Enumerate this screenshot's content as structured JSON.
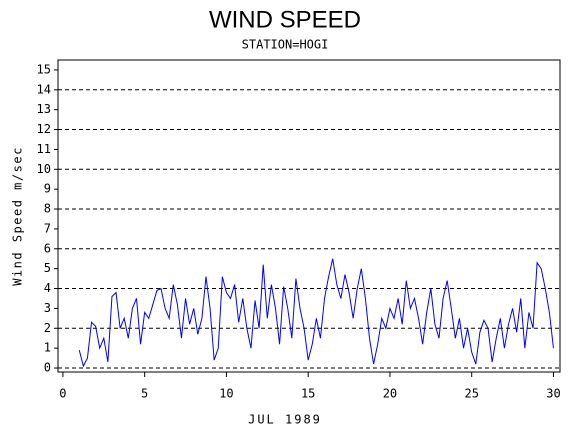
{
  "chart_data": {
    "type": "line",
    "title": "WIND SPEED",
    "subtitle": "STATION=HOGI",
    "x_label": "JUL 1989",
    "y_label": "Wind Speed m/sec",
    "xlim": [
      -0.3,
      30.4
    ],
    "xticks": [
      0,
      5,
      10,
      15,
      20,
      25,
      30
    ],
    "ylim": [
      -0.2,
      15.5
    ],
    "yticks": [
      0,
      1,
      2,
      3,
      4,
      5,
      6,
      7,
      8,
      9,
      10,
      11,
      12,
      13,
      14,
      15
    ],
    "ygrid": [
      0,
      2,
      4,
      6,
      8,
      10,
      12,
      14
    ],
    "x": [
      1,
      1.25,
      1.5,
      1.75,
      2,
      2.25,
      2.5,
      2.75,
      3,
      3.25,
      3.5,
      3.75,
      4,
      4.25,
      4.5,
      4.75,
      5,
      5.25,
      5.5,
      5.75,
      6,
      6.25,
      6.5,
      6.75,
      7,
      7.25,
      7.5,
      7.75,
      8,
      8.25,
      8.5,
      8.75,
      9,
      9.25,
      9.5,
      9.75,
      10,
      10.25,
      10.5,
      10.75,
      11,
      11.25,
      11.5,
      11.75,
      12,
      12.25,
      12.5,
      12.75,
      13,
      13.25,
      13.5,
      13.75,
      14,
      14.25,
      14.5,
      14.75,
      15,
      15.25,
      15.5,
      15.75,
      16,
      16.25,
      16.5,
      16.75,
      17,
      17.25,
      17.5,
      17.75,
      18,
      18.25,
      18.5,
      18.75,
      19,
      19.25,
      19.5,
      19.75,
      20,
      20.25,
      20.5,
      20.75,
      21,
      21.25,
      21.5,
      21.75,
      22,
      22.25,
      22.5,
      22.75,
      23,
      23.25,
      23.5,
      23.75,
      24,
      24.25,
      24.5,
      24.75,
      25,
      25.25,
      25.5,
      25.75,
      26,
      26.25,
      26.5,
      26.75,
      27,
      27.25,
      27.5,
      27.75,
      28,
      28.25,
      28.5,
      28.75,
      29,
      29.25,
      29.5,
      29.75,
      30
    ],
    "series": [
      {
        "color": "#0000ff",
        "values": [
          0.9,
          0.1,
          0.5,
          2.3,
          2.1,
          1.0,
          1.5,
          0.3,
          3.6,
          3.8,
          2.0,
          2.5,
          1.5,
          3.0,
          3.5,
          1.2,
          2.8,
          2.5,
          3.2,
          3.9,
          4.0,
          3.0,
          2.5,
          4.2,
          3.2,
          1.5,
          3.5,
          2.2,
          3.0,
          1.7,
          2.5,
          4.6,
          3.0,
          0.4,
          1.0,
          4.6,
          3.8,
          3.5,
          4.2,
          2.3,
          3.5,
          2.0,
          1.0,
          3.4,
          2.0,
          5.2,
          2.5,
          4.2,
          3.0,
          1.2,
          4.1,
          3.0,
          1.5,
          4.5,
          3.0,
          2.0,
          0.4,
          1.2,
          2.5,
          1.5,
          3.5,
          4.6,
          5.5,
          4.2,
          3.5,
          4.7,
          3.8,
          2.5,
          4.0,
          5.0,
          3.5,
          1.5,
          0.2,
          1.2,
          2.5,
          2.0,
          3.0,
          2.5,
          3.5,
          2.2,
          4.4,
          3.0,
          3.5,
          2.5,
          1.2,
          2.8,
          4.0,
          2.2,
          1.5,
          3.5,
          4.4,
          3.0,
          1.5,
          2.5,
          1.0,
          2.0,
          0.8,
          0.2,
          1.8,
          2.4,
          2.0,
          0.3,
          1.5,
          2.5,
          1.0,
          2.2,
          3.0,
          1.8,
          3.5,
          1.0,
          2.8,
          2.0,
          5.3,
          5.0,
          4.0,
          2.8,
          1.0
        ]
      }
    ]
  }
}
